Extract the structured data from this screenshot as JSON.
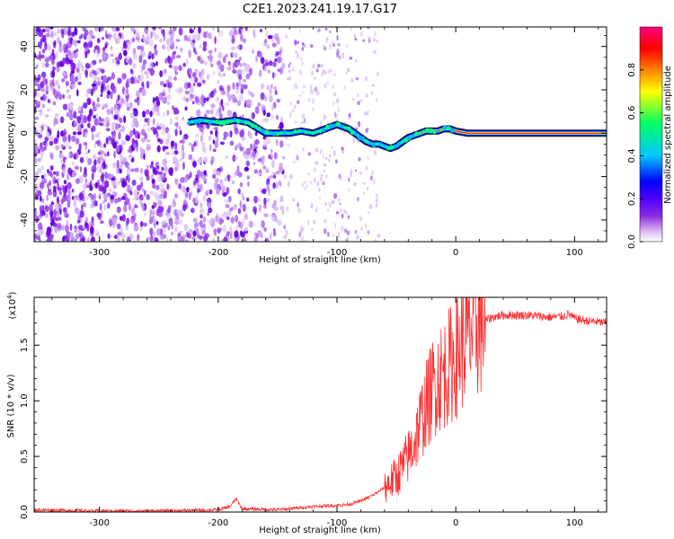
{
  "title": "C2E1.2023.241.19.17.G17",
  "chart_data": [
    {
      "type": "heatmap",
      "xlabel": "Height of straight line (km)",
      "ylabel": "Frequency (Hz)",
      "xlim": [
        -355,
        127
      ],
      "ylim": [
        -50,
        49
      ],
      "xticks": [
        -300,
        -200,
        -100,
        0,
        100
      ],
      "xtick_labels": [
        "-300",
        "-200",
        "-100",
        "0",
        "100"
      ],
      "yticks": [
        -40,
        -20,
        0,
        20,
        40
      ],
      "ytick_labels": [
        "-40",
        "-20",
        "0",
        "20",
        "40"
      ],
      "colorbar": {
        "label": "Normalized spectral amplitude",
        "range": [
          0,
          1
        ],
        "ticks": [
          0.0,
          0.2,
          0.4,
          0.6,
          0.8
        ],
        "tick_labels": [
          "0.0",
          "0.2",
          "0.4",
          "0.6",
          "0.8"
        ],
        "colors": [
          "#ffffff",
          "#dcb4f0",
          "#8a2be2",
          "#5000ff",
          "#0000ff",
          "#00c8ff",
          "#00ff64",
          "#ffff00",
          "#ff8000",
          "#ff0000",
          "#ff0080"
        ]
      },
      "signal_track": {
        "x": [
          -225,
          -215,
          -200,
          -185,
          -175,
          -160,
          -148,
          -140,
          -130,
          -120,
          -110,
          -100,
          -95,
          -90,
          -85,
          -80,
          -75,
          -70,
          -65,
          -60,
          -55,
          -50,
          -45,
          -40,
          -35,
          -30,
          -25,
          -20,
          -15,
          -10,
          -5,
          0,
          10,
          30,
          60,
          90,
          127
        ],
        "y": [
          5,
          6,
          5,
          6,
          5,
          0,
          0,
          0,
          1,
          0,
          2,
          4,
          3,
          2,
          0,
          -2,
          -4,
          -5,
          -5,
          -6,
          -7,
          -6,
          -4,
          -2,
          -1,
          0,
          1,
          1,
          1,
          2,
          2,
          1,
          0,
          0,
          0,
          0,
          0
        ]
      },
      "noise_region": {
        "x": [
          -355,
          -145
        ],
        "y": [
          -50,
          49
        ]
      }
    },
    {
      "type": "line",
      "xlabel": "Height of straight line (km)",
      "ylabel": "SNR (10 * v/v)",
      "yscale_label": "(x10",
      "yscale_exp": "4",
      "yscale_close": ")",
      "xlim": [
        -355,
        127
      ],
      "ylim": [
        0,
        1.93
      ],
      "xticks": [
        -300,
        -200,
        -100,
        0,
        100
      ],
      "xtick_labels": [
        "-300",
        "-200",
        "-100",
        "0",
        "100"
      ],
      "yticks": [
        0.0,
        0.5,
        1.0,
        1.5
      ],
      "ytick_labels": [
        "0.0",
        "0.5",
        "1.0",
        "1.5"
      ],
      "color": "#ff3030",
      "series": [
        {
          "x": [
            -355,
            -300,
            -250,
            -200,
            -190,
            -185,
            -180,
            -150,
            -120,
            -100,
            -90,
            -80,
            -70,
            -60,
            -50,
            -45,
            -40,
            -35,
            -30,
            -25,
            -20,
            -15,
            -10,
            -5,
            0,
            5,
            10,
            15,
            20,
            25,
            30,
            40,
            60,
            80,
            90,
            95,
            100,
            110,
            127
          ],
          "y": [
            0.02,
            0.01,
            0.01,
            0.02,
            0.05,
            0.12,
            0.03,
            0.02,
            0.05,
            0.06,
            0.07,
            0.1,
            0.15,
            0.22,
            0.32,
            0.4,
            0.5,
            0.62,
            0.8,
            0.95,
            1.1,
            1.2,
            1.25,
            1.32,
            1.38,
            1.5,
            1.58,
            1.65,
            1.68,
            1.72,
            1.75,
            1.77,
            1.77,
            1.75,
            1.76,
            1.78,
            1.74,
            1.72,
            1.7
          ]
        }
      ]
    }
  ]
}
